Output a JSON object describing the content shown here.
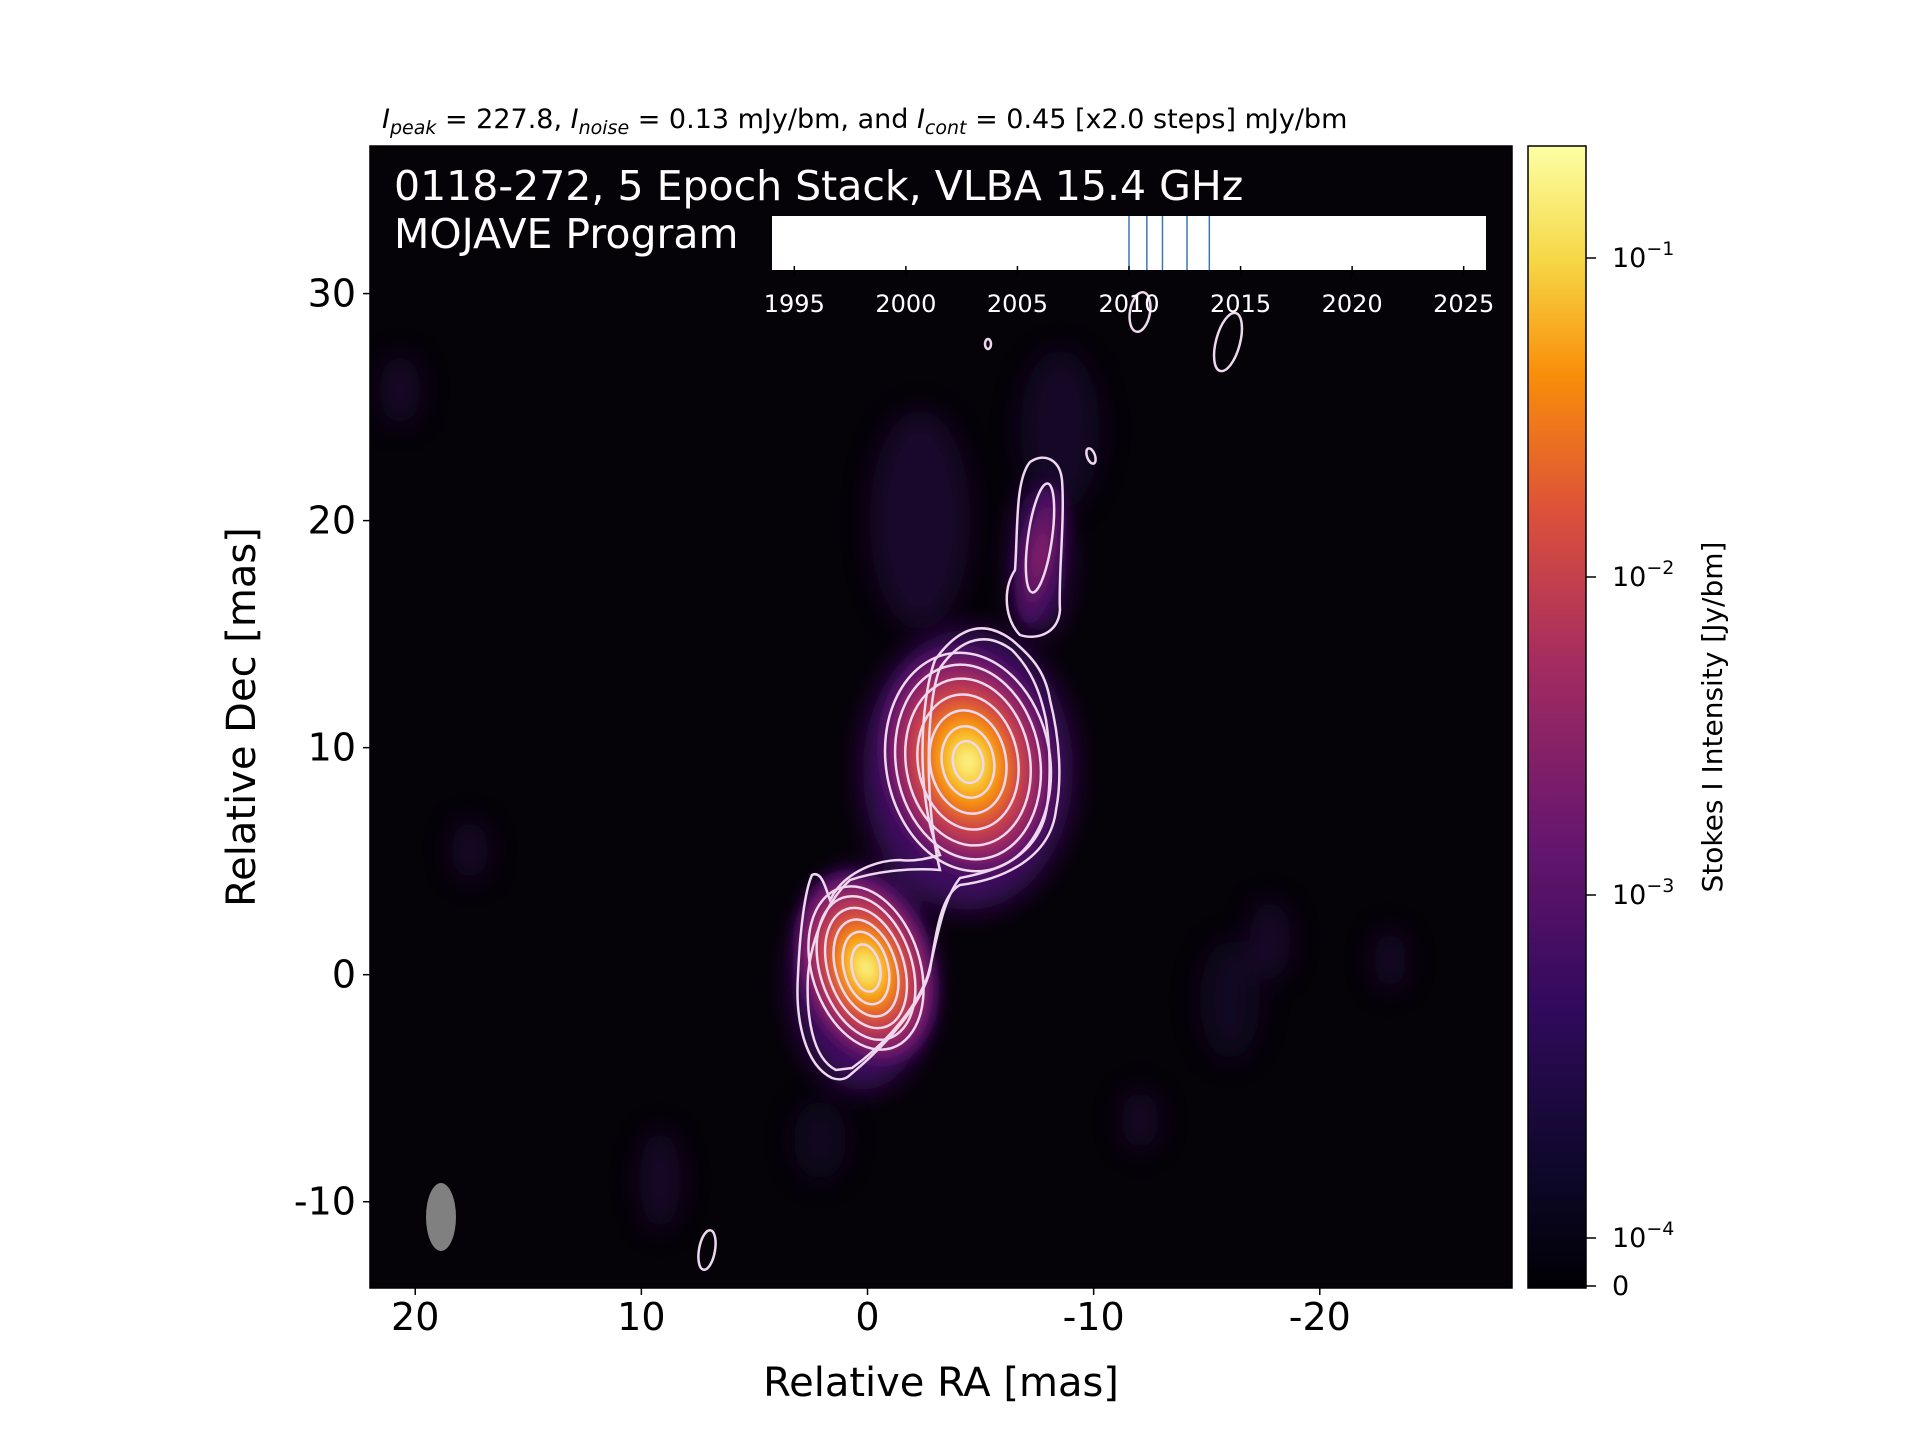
{
  "chart_data": {
    "type": "heatmap",
    "header": {
      "peak_sym": "I",
      "peak_sub": "peak",
      "peak_text": " = 227.8, ",
      "noise_sym": "I",
      "noise_sub": "noise",
      "noise_text": " = 0.13 mJy/bm, and ",
      "cont_sym": "I",
      "cont_sub": "cont",
      "cont_text": " = 0.45 [x2.0 steps] mJy/bm"
    },
    "title_line1": "0118-272, 5 Epoch Stack, VLBA 15.4 GHz",
    "title_line2": "MOJAVE Program",
    "xlabel": "Relative RA [mas]",
    "ylabel": "Relative Dec [mas]",
    "x_ticks": [
      20,
      10,
      0,
      -10,
      -20
    ],
    "x_tick_labels": [
      "20",
      "10",
      "0",
      "-10",
      "-20"
    ],
    "y_ticks": [
      30,
      20,
      10,
      0,
      -10
    ],
    "y_tick_labels": [
      "30",
      "20",
      "10",
      "0",
      "-10"
    ],
    "xlim": [
      22,
      -28.5
    ],
    "ylim": [
      -13.8,
      36.5
    ],
    "colorbar": {
      "label": "Stokes I Intensity [Jy/bm]",
      "scale": "log",
      "tick_labels": [
        {
          "base": "10",
          "exp": "−1"
        },
        {
          "base": "10",
          "exp": "−2"
        },
        {
          "base": "10",
          "exp": "−3"
        },
        {
          "base": "10",
          "exp": "−4"
        },
        {
          "base": "0",
          "exp": ""
        }
      ],
      "colors": [
        "#000004",
        "#320a5e",
        "#781c6d",
        "#bc3754",
        "#ed6925",
        "#fbb61a",
        "#fcffa4"
      ]
    },
    "components": [
      {
        "ra": 0.0,
        "dec": 0.0,
        "peak_jy": 0.2278
      },
      {
        "ra": -4.5,
        "dec": 9.2,
        "peak_jy": 0.1
      },
      {
        "ra": -8.0,
        "dec": 18.5,
        "peak_jy": 0.0015
      }
    ],
    "contour_base_mjy": 0.45,
    "contour_step": 2.0,
    "epoch_timeline": {
      "ticks": [
        1995,
        2000,
        2005,
        2010,
        2015,
        2020,
        2025
      ],
      "tick_labels": [
        "1995",
        "2000",
        "2005",
        "2010",
        "2015",
        "2020",
        "2025"
      ],
      "range": [
        1994.0,
        2026.0
      ],
      "epochs": [
        2010.0,
        2010.8,
        2011.5,
        2012.6,
        2013.6
      ]
    },
    "beam": {
      "color": "#808080"
    }
  }
}
